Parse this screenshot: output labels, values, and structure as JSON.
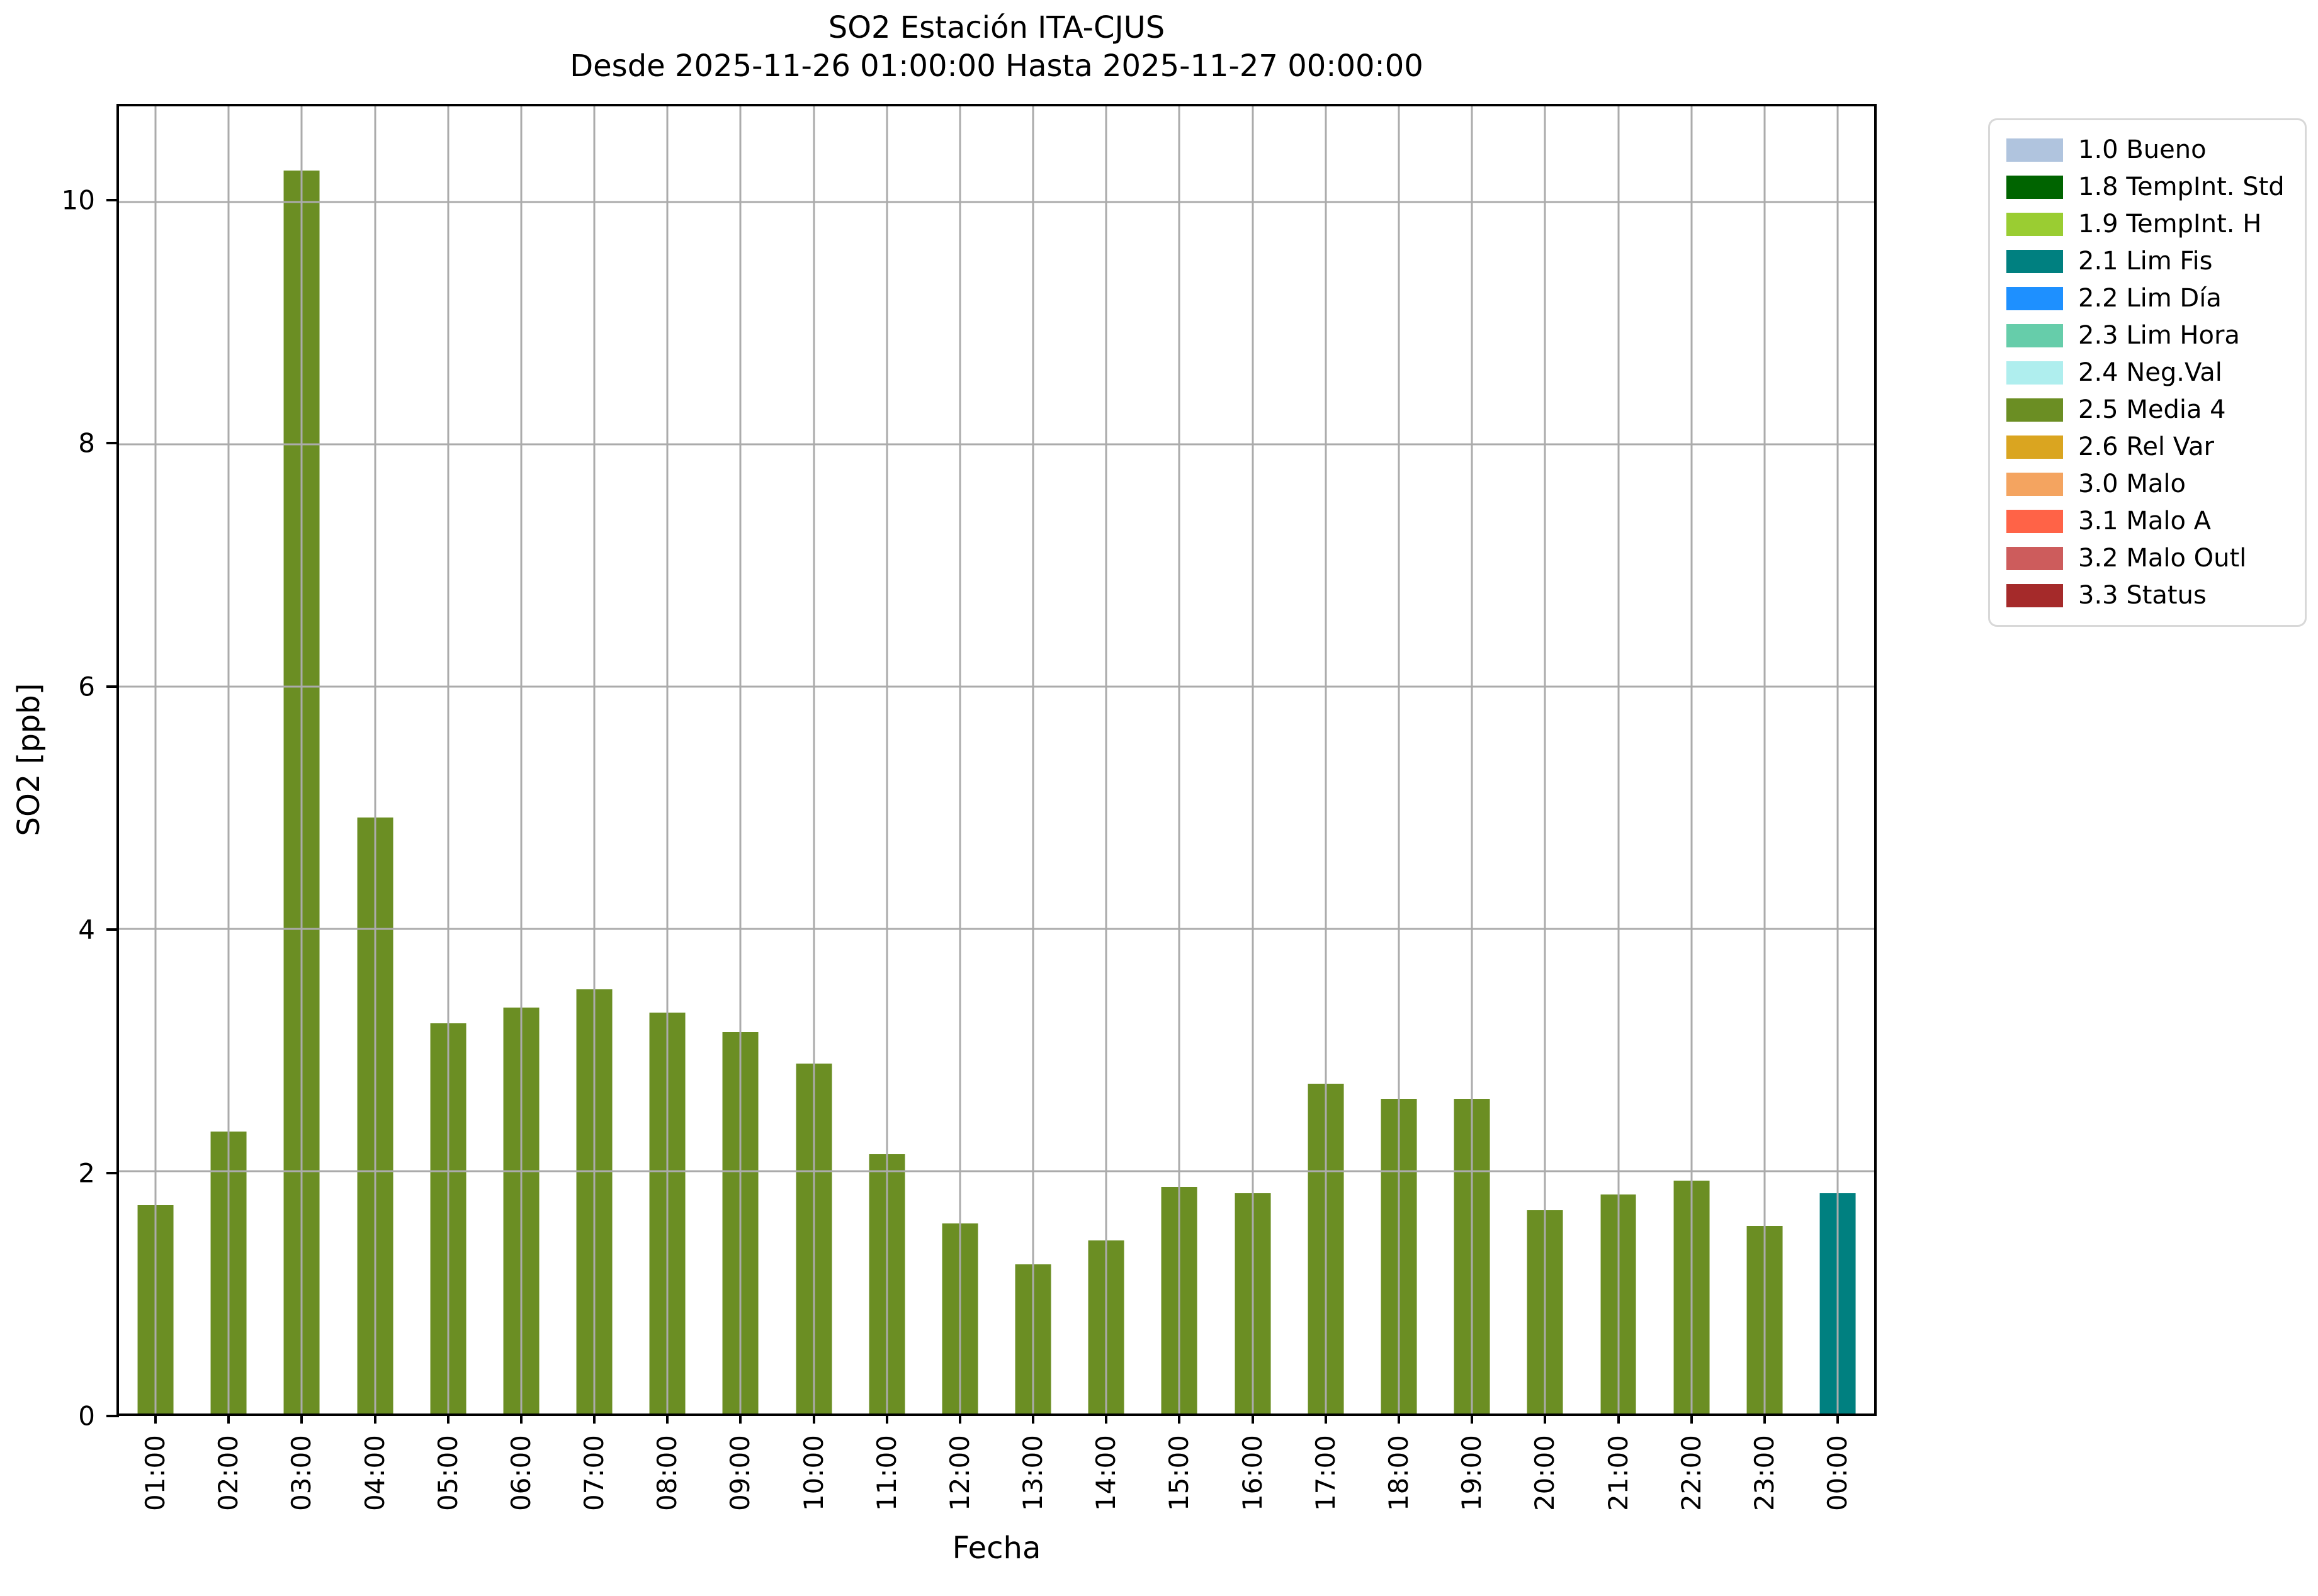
{
  "title": {
    "line1": "SO2 Estación ITA-CJUS",
    "line2": "Desde 2025-11-26 01:00:00 Hasta 2025-11-27 00:00:00"
  },
  "axes": {
    "xlabel": "Fecha",
    "ylabel": "SO2 [ppb]"
  },
  "chart_data": {
    "type": "bar",
    "title": "SO2 Estación ITA-CJUS\nDesde 2025-11-26 01:00:00 Hasta 2025-11-27 00:00:00",
    "xlabel": "Fecha",
    "ylabel": "SO2 [ppb]",
    "ylim": [
      0,
      10.79
    ],
    "yticks": [
      0,
      2,
      4,
      6,
      8,
      10
    ],
    "grid": true,
    "grid_color": "#ababab",
    "legend_position": "outside-right-top",
    "categories": [
      "01:00",
      "02:00",
      "03:00",
      "04:00",
      "05:00",
      "06:00",
      "07:00",
      "08:00",
      "09:00",
      "10:00",
      "11:00",
      "12:00",
      "13:00",
      "14:00",
      "15:00",
      "16:00",
      "17:00",
      "18:00",
      "19:00",
      "20:00",
      "21:00",
      "22:00",
      "23:00",
      "00:00"
    ],
    "values": [
      1.72,
      2.33,
      10.26,
      4.92,
      3.22,
      3.35,
      3.5,
      3.31,
      3.15,
      2.89,
      2.14,
      1.57,
      1.23,
      1.43,
      1.87,
      1.82,
      2.72,
      2.6,
      2.6,
      1.68,
      1.81,
      1.92,
      1.55,
      1.82
    ],
    "bar_status": [
      "2.5 Media 4",
      "2.5 Media 4",
      "2.5 Media 4",
      "2.5 Media 4",
      "2.5 Media 4",
      "2.5 Media 4",
      "2.5 Media 4",
      "2.5 Media 4",
      "2.5 Media 4",
      "2.5 Media 4",
      "2.5 Media 4",
      "2.5 Media 4",
      "2.5 Media 4",
      "2.5 Media 4",
      "2.5 Media 4",
      "2.5 Media 4",
      "2.5 Media 4",
      "2.5 Media 4",
      "2.5 Media 4",
      "2.5 Media 4",
      "2.5 Media 4",
      "2.5 Media 4",
      "2.5 Media 4",
      "2.1 Lim Fis"
    ]
  },
  "legend": {
    "entries": [
      {
        "label": "1.0 Bueno",
        "color": "#b0c4de"
      },
      {
        "label": "1.8 TempInt. Std",
        "color": "#006400"
      },
      {
        "label": "1.9 TempInt. H",
        "color": "#9acd32"
      },
      {
        "label": "2.1 Lim Fis",
        "color": "#008080"
      },
      {
        "label": "2.2 Lim Día",
        "color": "#1e90ff"
      },
      {
        "label": "2.3 Lim Hora",
        "color": "#66cdaa"
      },
      {
        "label": "2.4 Neg.Val",
        "color": "#afeeee"
      },
      {
        "label": "2.5 Media 4",
        "color": "#6b8e23"
      },
      {
        "label": "2.6 Rel Var",
        "color": "#daa520"
      },
      {
        "label": "3.0 Malo",
        "color": "#f4a460"
      },
      {
        "label": "3.1 Malo A",
        "color": "#ff6347"
      },
      {
        "label": "3.2 Malo Outl",
        "color": "#cd5c5c"
      },
      {
        "label": "3.3 Status",
        "color": "#a52a2a"
      }
    ]
  },
  "colors": {
    "bar_default": "#6b8e23",
    "bar_last": "#008080",
    "grid": "#ababab",
    "spine": "#000000",
    "legend_border": "#d8d8d8",
    "background": "#ffffff"
  }
}
